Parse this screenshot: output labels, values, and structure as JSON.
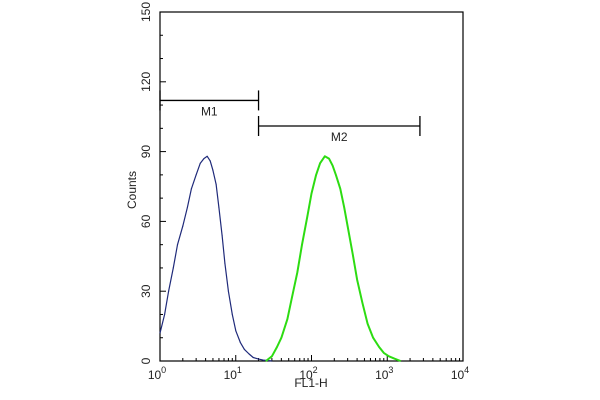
{
  "chart_data": {
    "type": "line",
    "xlabel": "FL1-H",
    "ylabel": "Counts",
    "x_scale": "log",
    "xlim": [
      1,
      10000
    ],
    "ylim": [
      0,
      150
    ],
    "x_ticks": [
      {
        "value": 1,
        "base": "10",
        "exp": "0"
      },
      {
        "value": 10,
        "base": "10",
        "exp": "1"
      },
      {
        "value": 100,
        "base": "10",
        "exp": "2"
      },
      {
        "value": 1000,
        "base": "10",
        "exp": "3"
      },
      {
        "value": 10000,
        "base": "10",
        "exp": "4"
      }
    ],
    "y_ticks": [
      {
        "value": 0,
        "label": "0"
      },
      {
        "value": 30,
        "label": "30"
      },
      {
        "value": 60,
        "label": "60"
      },
      {
        "value": 90,
        "label": "90"
      },
      {
        "value": 120,
        "label": "120"
      },
      {
        "value": 150,
        "label": "150"
      }
    ],
    "markers": [
      {
        "label": "M1",
        "x_start": 1,
        "x_end": 20,
        "y": 112
      },
      {
        "label": "M2",
        "x_start": 20,
        "x_end": 2700,
        "y": 101
      }
    ],
    "series": [
      {
        "color": "#1f2a7a",
        "x": [
          1,
          1.15,
          1.3,
          1.5,
          1.7,
          2.0,
          2.3,
          2.6,
          3.0,
          3.4,
          3.8,
          4.2,
          4.6,
          5.0,
          5.5,
          6.0,
          6.6,
          7.2,
          8.0,
          9.0,
          10,
          11.5,
          13,
          15,
          17,
          20,
          23,
          26,
          30
        ],
        "y": [
          12,
          20,
          30,
          40,
          50,
          58,
          66,
          74,
          80,
          85,
          87,
          88,
          86,
          82,
          76,
          66,
          54,
          42,
          30,
          20,
          13,
          8,
          5,
          3,
          1.5,
          0.8,
          0.4,
          0.2,
          0
        ]
      },
      {
        "color": "#2ddc12",
        "x": [
          25,
          30,
          35,
          40,
          48,
          55,
          65,
          75,
          88,
          100,
          115,
          130,
          150,
          170,
          190,
          210,
          240,
          270,
          300,
          350,
          400,
          470,
          550,
          650,
          780,
          900,
          1050,
          1250,
          1500
        ],
        "y": [
          0,
          2,
          6,
          10,
          18,
          27,
          38,
          50,
          62,
          72,
          80,
          85,
          88,
          87,
          84,
          80,
          74,
          66,
          58,
          46,
          35,
          25,
          16,
          10,
          6,
          3.5,
          2,
          1,
          0
        ]
      }
    ]
  }
}
